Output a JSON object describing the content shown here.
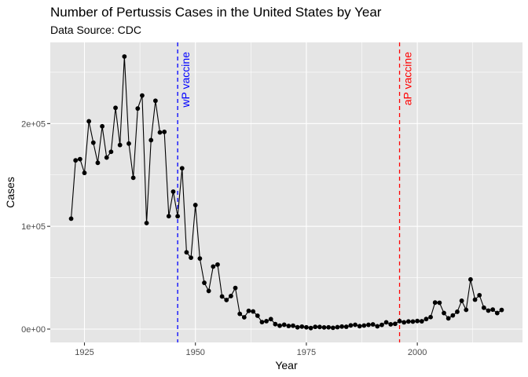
{
  "chart_data": {
    "type": "line",
    "title": "Number of Pertussis Cases in the United States by Year",
    "subtitle": "Data Source: CDC",
    "xlabel": "Year",
    "ylabel": "Cases",
    "xlim": [
      1917.3,
      2023.7
    ],
    "ylim": [
      -13000,
      279000
    ],
    "x_ticks": [
      1925,
      1950,
      1975,
      2000
    ],
    "x_tick_labels": [
      "1925",
      "1950",
      "1975",
      "2000"
    ],
    "y_ticks": [
      0,
      100000,
      200000
    ],
    "y_tick_labels": [
      "0e+00",
      "1e+05",
      "2e+05"
    ],
    "grid": true,
    "background": "#e5e5e5",
    "line_color": "#000000",
    "point_color": "#000000",
    "annotations": [
      {
        "label": "wP vaccine",
        "x": 1946,
        "color": "#0000ff"
      },
      {
        "label": "aP vaccine",
        "x": 1996,
        "color": "#ff0000"
      }
    ],
    "series": [
      {
        "x": [
          1922,
          1923,
          1924,
          1925,
          1926,
          1927,
          1928,
          1929,
          1930,
          1931,
          1932,
          1933,
          1934,
          1935,
          1936,
          1937,
          1938,
          1939,
          1940,
          1941,
          1942,
          1943,
          1944,
          1945,
          1946,
          1947,
          1948,
          1949,
          1950,
          1951,
          1952,
          1953,
          1954,
          1955,
          1956,
          1957,
          1958,
          1959,
          1960,
          1961,
          1962,
          1963,
          1964,
          1965,
          1966,
          1967,
          1968,
          1969,
          1970,
          1971,
          1972,
          1973,
          1974,
          1975,
          1976,
          1977,
          1978,
          1979,
          1980,
          1981,
          1982,
          1983,
          1984,
          1985,
          1986,
          1987,
          1988,
          1989,
          1990,
          1991,
          1992,
          1993,
          1994,
          1995,
          1996,
          1997,
          1998,
          1999,
          2000,
          2001,
          2002,
          2003,
          2004,
          2005,
          2006,
          2007,
          2008,
          2009,
          2010,
          2011,
          2012,
          2013,
          2014,
          2015,
          2016,
          2017,
          2018,
          2019
        ],
        "y": [
          107473,
          164191,
          165418,
          152003,
          202210,
          181411,
          161799,
          197371,
          166914,
          172559,
          215343,
          179135,
          265269,
          180518,
          147237,
          214652,
          227319,
          103188,
          183866,
          222202,
          191383,
          191890,
          109873,
          133792,
          109860,
          156517,
          74715,
          69479,
          120718,
          68687,
          45030,
          37129,
          60886,
          62786,
          31732,
          28295,
          32148,
          40005,
          14809,
          11468,
          17749,
          17135,
          13005,
          6799,
          7717,
          9718,
          4810,
          3285,
          4249,
          3036,
          3287,
          1759,
          2402,
          1738,
          1010,
          2177,
          2063,
          1623,
          1730,
          1248,
          1895,
          2463,
          2276,
          3589,
          4195,
          2823,
          3450,
          4157,
          4570,
          2719,
          4083,
          6586,
          4617,
          5137,
          7796,
          6564,
          7405,
          7288,
          7867,
          7580,
          9771,
          11647,
          25827,
          25616,
          15632,
          10454,
          13278,
          16858,
          27550,
          18719,
          48277,
          28639,
          32971,
          20762,
          17972,
          18975,
          15609,
          18617
        ]
      }
    ]
  }
}
